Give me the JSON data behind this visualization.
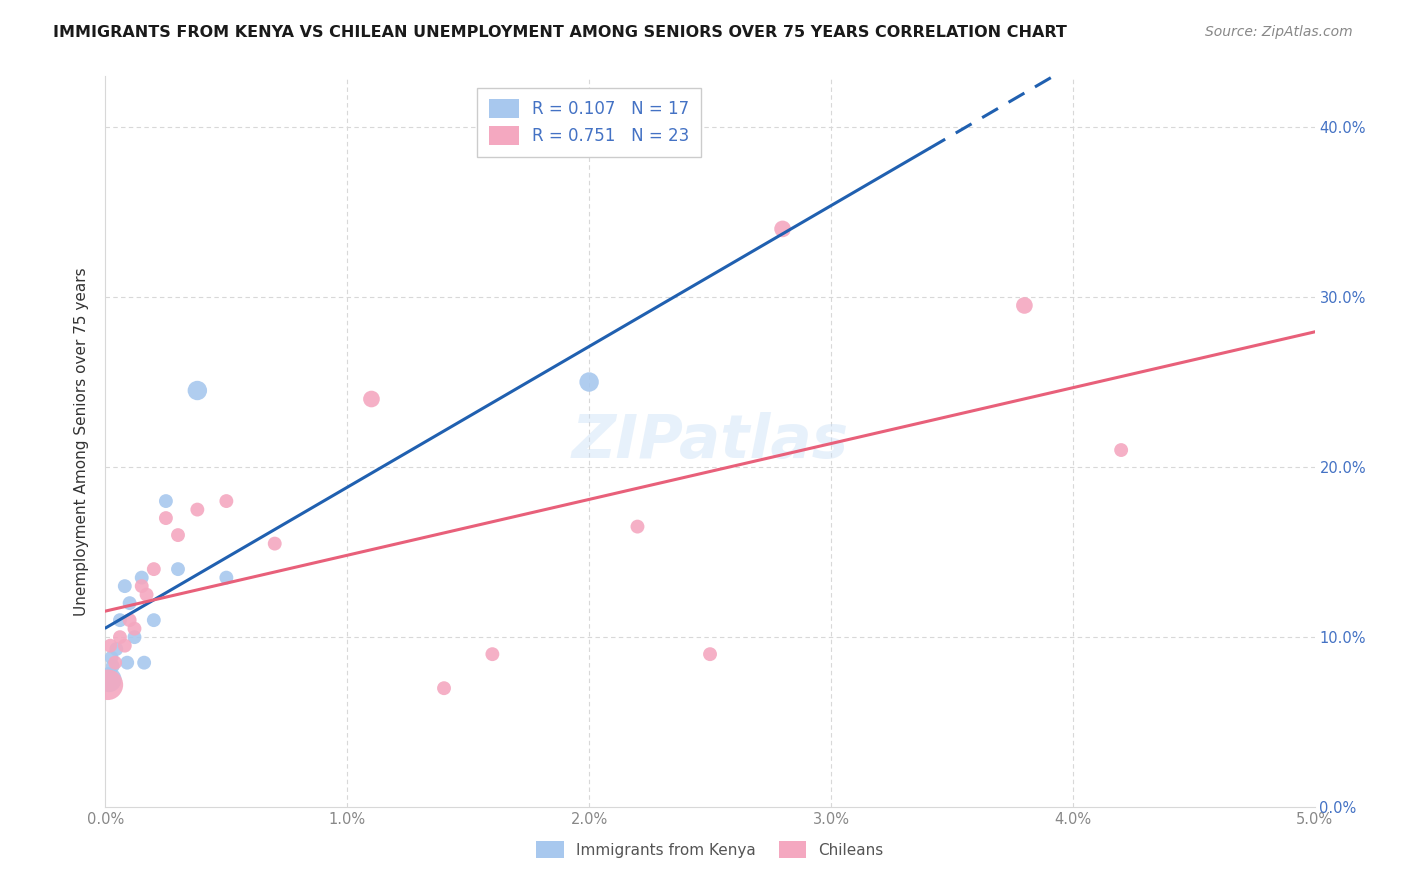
{
  "title": "IMMIGRANTS FROM KENYA VS CHILEAN UNEMPLOYMENT AMONG SENIORS OVER 75 YEARS CORRELATION CHART",
  "source": "Source: ZipAtlas.com",
  "ylabel": "Unemployment Among Seniors over 75 years",
  "xlim": [
    0.0,
    0.05
  ],
  "ylim": [
    0.0,
    0.43
  ],
  "kenya_color": "#a8c8ee",
  "chilean_color": "#f4a8c0",
  "kenya_line_color": "#2060b0",
  "chilean_line_color": "#e8607a",
  "watermark": "ZIPatlas",
  "kenya_legend_label": "R = 0.107   N = 17",
  "chilean_legend_label": "R = 0.751   N = 23",
  "bottom_legend_kenya": "Immigrants from Kenya",
  "bottom_legend_chilean": "Chileans",
  "legend_text_color": "#4472c4",
  "right_tick_color": "#4472c4",
  "kenya_points": [
    [
      0.00015,
      0.075,
      18
    ],
    [
      0.00025,
      0.088,
      10
    ],
    [
      0.0003,
      0.083,
      10
    ],
    [
      0.00045,
      0.093,
      10
    ],
    [
      0.0006,
      0.11,
      10
    ],
    [
      0.0008,
      0.13,
      10
    ],
    [
      0.0009,
      0.085,
      10
    ],
    [
      0.001,
      0.12,
      10
    ],
    [
      0.0012,
      0.1,
      10
    ],
    [
      0.0015,
      0.135,
      10
    ],
    [
      0.0016,
      0.085,
      10
    ],
    [
      0.002,
      0.11,
      10
    ],
    [
      0.0025,
      0.18,
      10
    ],
    [
      0.003,
      0.14,
      10
    ],
    [
      0.0038,
      0.245,
      14
    ],
    [
      0.005,
      0.135,
      10
    ],
    [
      0.02,
      0.25,
      14
    ]
  ],
  "chilean_points": [
    [
      0.0001,
      0.072,
      22
    ],
    [
      0.0002,
      0.095,
      10
    ],
    [
      0.0004,
      0.085,
      10
    ],
    [
      0.0006,
      0.1,
      10
    ],
    [
      0.0008,
      0.095,
      10
    ],
    [
      0.001,
      0.11,
      10
    ],
    [
      0.0012,
      0.105,
      10
    ],
    [
      0.0015,
      0.13,
      10
    ],
    [
      0.0017,
      0.125,
      10
    ],
    [
      0.002,
      0.14,
      10
    ],
    [
      0.0025,
      0.17,
      10
    ],
    [
      0.003,
      0.16,
      10
    ],
    [
      0.0038,
      0.175,
      10
    ],
    [
      0.005,
      0.18,
      10
    ],
    [
      0.007,
      0.155,
      10
    ],
    [
      0.011,
      0.24,
      12
    ],
    [
      0.014,
      0.07,
      10
    ],
    [
      0.016,
      0.09,
      10
    ],
    [
      0.022,
      0.165,
      10
    ],
    [
      0.025,
      0.09,
      10
    ],
    [
      0.028,
      0.34,
      12
    ],
    [
      0.038,
      0.295,
      12
    ],
    [
      0.042,
      0.21,
      10
    ]
  ],
  "yticks": [
    0.0,
    0.1,
    0.2,
    0.3,
    0.4
  ],
  "xticks": [
    0.0,
    0.01,
    0.02,
    0.03,
    0.04,
    0.05
  ],
  "grid_color": "#d8d8d8",
  "tick_color": "#888888",
  "title_fontsize": 11.5,
  "source_fontsize": 10
}
